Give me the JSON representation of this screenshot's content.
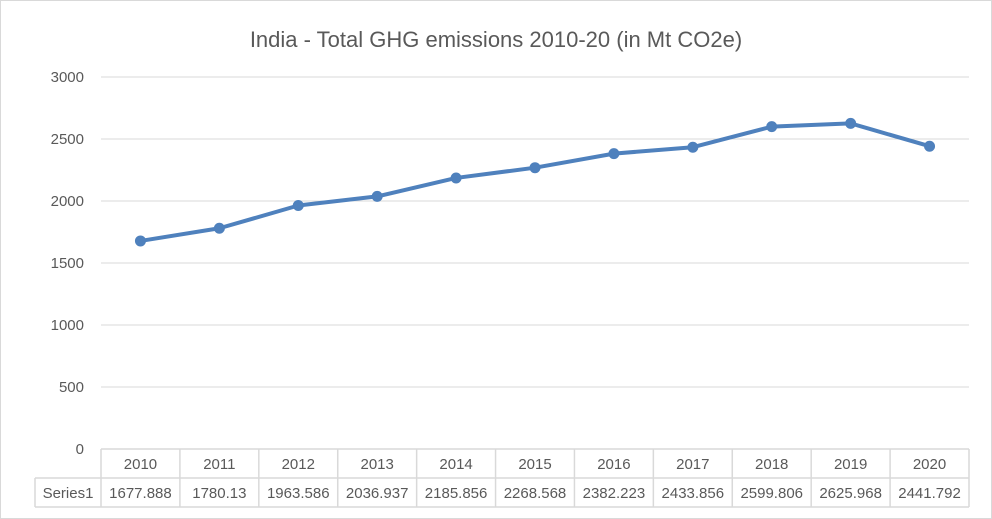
{
  "chart_data": {
    "type": "line",
    "title": "India - Total GHG emissions 2010-20 (in Mt CO2e)",
    "xlabel": "",
    "ylabel": "",
    "categories": [
      "2010",
      "2011",
      "2012",
      "2013",
      "2014",
      "2015",
      "2016",
      "2017",
      "2018",
      "2019",
      "2020"
    ],
    "series": [
      {
        "name": "Series1",
        "values": [
          1677.888,
          1780.13,
          1963.586,
          2036.937,
          2185.856,
          2268.568,
          2382.223,
          2433.856,
          2599.806,
          2625.968,
          2441.792
        ],
        "color": "#4f81bd"
      }
    ],
    "value_labels": [
      "1677.888",
      "1780.13",
      "1963.586",
      "2036.937",
      "2185.856",
      "2268.568",
      "2382.223",
      "2433.856",
      "2599.806",
      "2625.968",
      "2441.792"
    ],
    "ylim": [
      0,
      3000
    ],
    "yticks": [
      "0",
      "500",
      "1000",
      "1500",
      "2000",
      "2500",
      "3000"
    ],
    "grid": true,
    "legend": "data table below chart",
    "markers": true
  }
}
